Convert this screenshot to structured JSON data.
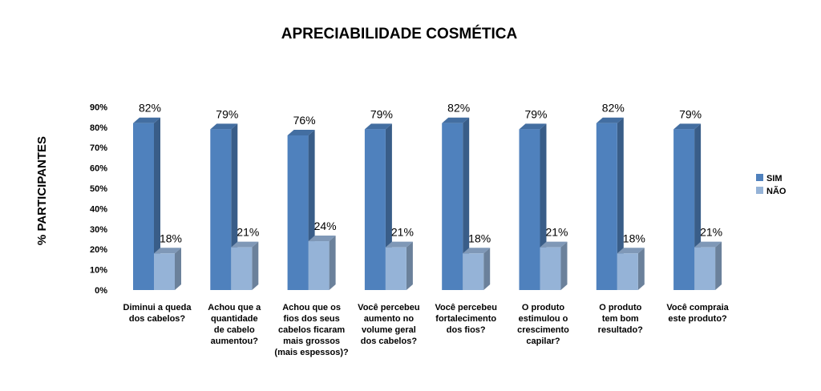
{
  "chart_data": {
    "type": "bar",
    "title": "APRECIABILIDADE COSMÉTICA",
    "xlabel": "",
    "ylabel": "% PARTICIPANTES",
    "ylim": [
      0,
      90
    ],
    "yticks": [
      "0%",
      "10%",
      "20%",
      "30%",
      "40%",
      "50%",
      "60%",
      "70%",
      "80%",
      "90%"
    ],
    "categories": [
      [
        "Diminui a queda",
        "dos cabelos?"
      ],
      [
        "Achou que a",
        "quantidade",
        "de cabelo",
        "aumentou?"
      ],
      [
        "Achou que os",
        "fios dos seus",
        "cabelos ficaram",
        "mais grossos",
        "(mais espessos)?"
      ],
      [
        "Você percebeu",
        "aumento no",
        "volume geral",
        "dos cabelos?"
      ],
      [
        "Você percebeu",
        "fortalecimento",
        "dos fios?"
      ],
      [
        "O produto",
        "estimulou o",
        "crescimento",
        "capilar?"
      ],
      [
        "O produto",
        "tem bom",
        "resultado?"
      ],
      [
        "Você compraia",
        "este produto?"
      ]
    ],
    "series": [
      {
        "name": "SIM",
        "color": "#4F81BD",
        "values": [
          82,
          79,
          76,
          79,
          82,
          79,
          82,
          79
        ],
        "labels": [
          "82%",
          "79%",
          "76%",
          "79%",
          "82%",
          "79%",
          "82%",
          "79%"
        ]
      },
      {
        "name": "NÃO",
        "color": "#95B3D7",
        "values": [
          18,
          21,
          24,
          21,
          18,
          21,
          18,
          21
        ],
        "labels": [
          "18%",
          "21%",
          "24%",
          "21%",
          "18%",
          "21%",
          "18%",
          "21%"
        ]
      }
    ],
    "legend_position": "right"
  }
}
